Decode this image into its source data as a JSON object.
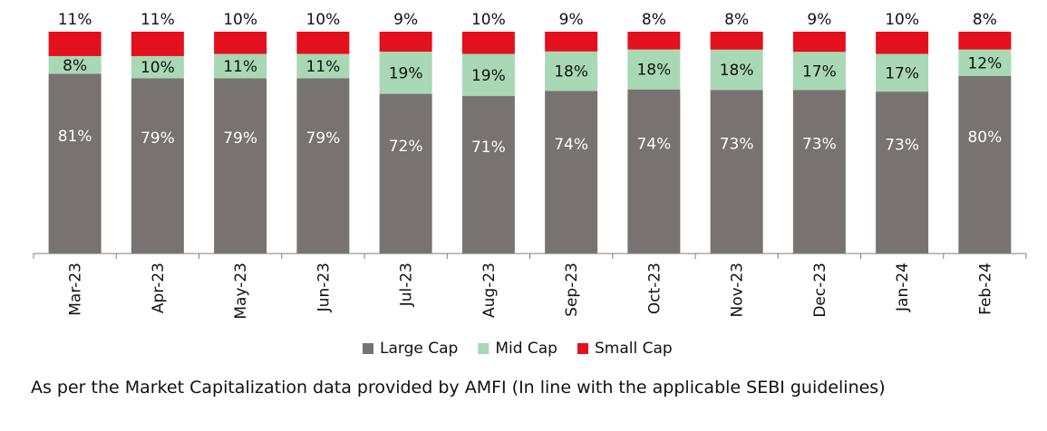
{
  "chart_data": {
    "type": "bar",
    "stacked": true,
    "percent_stacked": true,
    "categories": [
      "Mar-23",
      "Apr-23",
      "May-23",
      "Jun-23",
      "Jul-23",
      "Aug-23",
      "Sep-23",
      "Oct-23",
      "Nov-23",
      "Dec-23",
      "Jan-24",
      "Feb-24"
    ],
    "series": [
      {
        "name": "Large Cap",
        "color": "#787370",
        "values": [
          81,
          79,
          79,
          79,
          72,
          71,
          74,
          74,
          73,
          73,
          73,
          80
        ]
      },
      {
        "name": "Mid Cap",
        "color": "#a8d8b4",
        "values": [
          8,
          10,
          11,
          11,
          19,
          19,
          18,
          18,
          18,
          17,
          17,
          12
        ]
      },
      {
        "name": "Small Cap",
        "color": "#e3101e",
        "values": [
          11,
          11,
          10,
          10,
          9,
          10,
          9,
          8,
          8,
          9,
          10,
          8
        ]
      }
    ],
    "data_labels": true,
    "data_label_format": "{v}%",
    "legend_position": "bottom",
    "grid": false,
    "ylim": [
      0,
      100
    ]
  },
  "footnote": "As per the Market Capitalization data provided by AMFI (In line with the applicable SEBI guidelines)"
}
